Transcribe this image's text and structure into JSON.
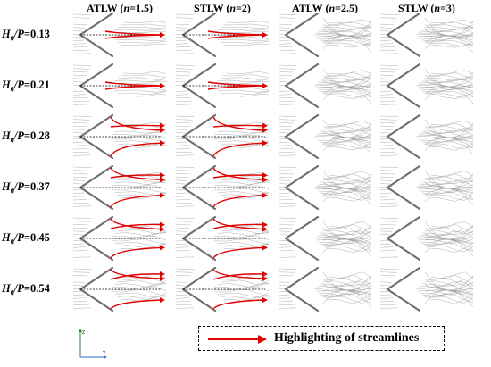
{
  "columns": [
    {
      "prefix": "ATLW (",
      "var": "n",
      "value": "=1.5)"
    },
    {
      "prefix": "STLW (",
      "var": "n",
      "value": "=2)"
    },
    {
      "prefix": "ATLW (",
      "var": "n",
      "value": "=2.5)"
    },
    {
      "prefix": "STLW (",
      "var": "n",
      "value": "=3)"
    }
  ],
  "rows": [
    {
      "h": "H",
      "sub": "0",
      "p": "/P",
      "value": "=0.13"
    },
    {
      "h": "H",
      "sub": "0",
      "p": "/P",
      "value": "=0.21"
    },
    {
      "h": "H",
      "sub": "0",
      "p": "/P",
      "value": "=0.28"
    },
    {
      "h": "H",
      "sub": "0",
      "p": "/P",
      "value": "=0.37"
    },
    {
      "h": "H",
      "sub": "0",
      "p": "/P",
      "value": "=0.45"
    },
    {
      "h": "H",
      "sub": "0",
      "p": "/P",
      "value": "=0.54"
    }
  ],
  "axes": {
    "z": "Z",
    "y": "Y"
  },
  "legend": {
    "label": "Highlighting of streamlines"
  },
  "colors": {
    "highlight": "#e00000",
    "weir": "#707070",
    "streamline": "#b0b0b0",
    "centerline": "#000000"
  }
}
